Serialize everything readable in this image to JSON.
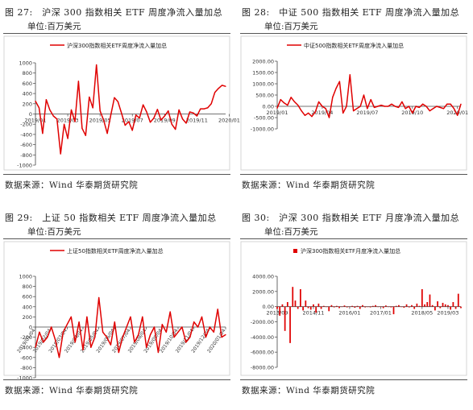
{
  "colors": {
    "series": "#e00000",
    "axis": "#444444",
    "frame": "#cccccc"
  },
  "source_text": "数据来源：Wind 华泰期货研究院",
  "figures": [
    {
      "title": "图 27:　沪深 300 指数相关 ETF 周度净流入量加总",
      "unit": "单位:百万美元"
    },
    {
      "title": "图 28:　中证 500 指数相关 ETF 周度净流入量加总",
      "unit": "单位:百万美元"
    },
    {
      "title": "图 29:　上证 50 指数相关 ETF 周度净流入量加总",
      "unit": "单位:百万美元"
    },
    {
      "title": "图 30:　沪深 300 指数相关 ETF 月度净流入量加总",
      "unit": "单位:百万美元"
    }
  ],
  "chart_data": [
    {
      "type": "line",
      "legend": "沪深300指数相关ETF周度净流入量加总",
      "legend_position": "top",
      "ylim": [
        -1000,
        1000
      ],
      "yticks": [
        1000,
        800,
        600,
        400,
        200,
        0,
        -200,
        -400,
        -600,
        -800,
        -1000
      ],
      "ytick_labels": [
        "1000",
        "800",
        "600",
        "400",
        "200",
        "0",
        "-200",
        "-400",
        "-600",
        "-800",
        "-1000"
      ],
      "xtick_labels": [
        "2019/01",
        "2019/03",
        "2019/05",
        "2019/07",
        "2019/09",
        "2019/11",
        "2020/01"
      ],
      "xtick_index": [
        0,
        9,
        18,
        27,
        36,
        45,
        54
      ],
      "values": [
        250,
        120,
        -380,
        280,
        80,
        -40,
        -100,
        -780,
        -200,
        -480,
        80,
        -150,
        640,
        -280,
        -420,
        330,
        120,
        960,
        60,
        -120,
        -380,
        -20,
        320,
        240,
        10,
        -220,
        -150,
        -320,
        -20,
        -80,
        180,
        40,
        -160,
        -80,
        90,
        -120,
        -40,
        60,
        -200,
        -300,
        80,
        -100,
        -180,
        40,
        20,
        -40,
        100,
        100,
        120,
        200,
        420,
        500,
        560,
        540
      ]
    },
    {
      "type": "line",
      "legend": "中证500指数相关ETF周度净流入量加总",
      "legend_position": "top",
      "ylim": [
        -1000,
        2000
      ],
      "yticks": [
        2000,
        1500,
        1000,
        500,
        0,
        -500,
        -1000
      ],
      "ytick_labels": [
        "2000.00",
        "1500.00",
        "1000.00",
        "500.00",
        "0.00",
        "-500.00",
        "-1000.00"
      ],
      "xtick_labels": [
        "2019/01",
        "2019/04",
        "2019/07",
        "2019/10",
        "2020/01"
      ],
      "xtick_index": [
        0,
        13,
        26,
        39,
        52
      ],
      "values": [
        -80,
        300,
        150,
        50,
        400,
        200,
        50,
        -200,
        -400,
        -300,
        -450,
        -250,
        200,
        0,
        -100,
        -500,
        400,
        800,
        1100,
        -300,
        0,
        1400,
        -200,
        -100,
        0,
        500,
        -100,
        300,
        -50,
        0,
        50,
        0,
        0,
        100,
        0,
        -50,
        200,
        -100,
        0,
        -300,
        0,
        -50,
        100,
        0,
        -200,
        -100,
        0,
        -50,
        -100,
        100,
        100,
        -100,
        -400,
        100
      ]
    },
    {
      "type": "line",
      "legend": "上证50指数相关ETF周度净流入量加总",
      "legend_position": "top",
      "ylim": [
        -1000,
        1000
      ],
      "yticks": [
        1000,
        800,
        600,
        400,
        200,
        0,
        -200,
        -400,
        -600,
        -800,
        -1000
      ],
      "ytick_labels": [
        "1000",
        "800",
        "600",
        "400",
        "200",
        "0",
        "-200",
        "-400",
        "-600",
        "-800",
        "-1000"
      ],
      "xtick_labels": [
        "2019/01/04",
        "2019/02/04",
        "2019/03/04",
        "2019/04/04",
        "2019/05/04",
        "2019/06/04",
        "2019/07/04",
        "2019/08/04",
        "2019/09/04",
        "2019/10/04",
        "2019/11/04",
        "2019/12/04",
        "2020/01/04"
      ],
      "xtick_index": [
        0,
        4,
        8,
        12,
        16,
        20,
        24,
        28,
        32,
        36,
        40,
        44,
        48
      ],
      "values": [
        -400,
        -100,
        -300,
        -200,
        0,
        -250,
        -600,
        -100,
        50,
        200,
        -300,
        100,
        -450,
        200,
        -400,
        -200,
        580,
        -100,
        -200,
        -350,
        100,
        -500,
        -200,
        0,
        200,
        -300,
        -150,
        200,
        -400,
        -150,
        0,
        -500,
        50,
        -100,
        300,
        -200,
        -100,
        0,
        -300,
        -200,
        100,
        0,
        200,
        -200,
        0,
        -100,
        350,
        -200,
        -150
      ]
    },
    {
      "type": "bar",
      "legend": "沪深300指数相关ETF月度净流入量加总",
      "legend_position": "top",
      "ylim": [
        -8000,
        4000
      ],
      "yticks": [
        4000,
        2000,
        0,
        -2000,
        -4000,
        -6000,
        -8000
      ],
      "ytick_labels": [
        "4000.00",
        "2000.00",
        "0.00",
        "-2000.00",
        "-4000.00",
        "-6000.00",
        "-8000.00"
      ],
      "xtick_labels": [
        "2013/09",
        "2014/11",
        "2016/01",
        "2017/01",
        "2018/05",
        "2019/03"
      ],
      "xtick_index": [
        0,
        14,
        28,
        40,
        56,
        66
      ],
      "values": [
        -300,
        -1200,
        300,
        -3200,
        600,
        -4800,
        2600,
        800,
        -300,
        2300,
        -500,
        800,
        -200,
        -400,
        300,
        -800,
        400,
        -300,
        100,
        0,
        -600,
        200,
        -100,
        100,
        -200,
        0,
        150,
        -100,
        -50,
        100,
        -150,
        100,
        -300,
        200,
        -100,
        0,
        -100,
        100,
        200,
        -50,
        0,
        -200,
        150,
        0,
        -100,
        -1000,
        100,
        200,
        0,
        -150,
        300,
        -100,
        200,
        -300,
        400,
        100,
        2300,
        300,
        600,
        1600,
        200,
        -500,
        700,
        -200,
        500,
        300,
        200,
        -400,
        600,
        -300,
        1700,
        -200
      ]
    }
  ]
}
